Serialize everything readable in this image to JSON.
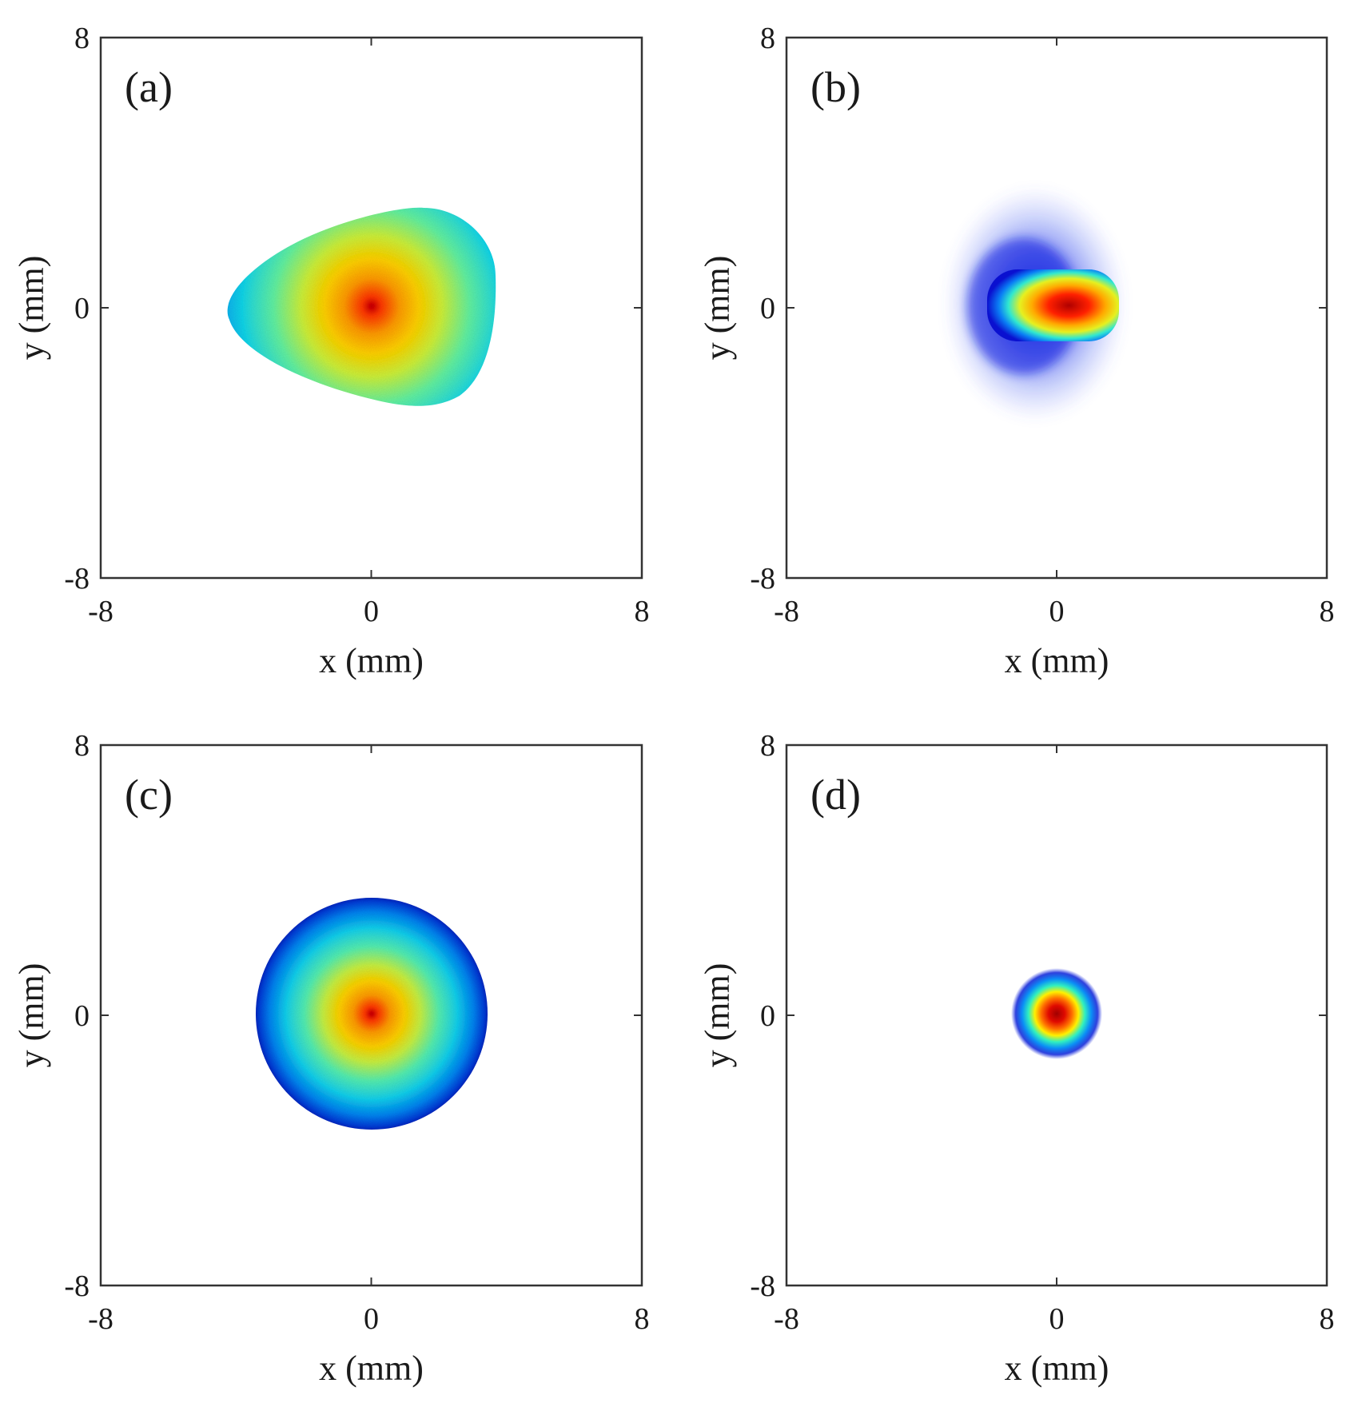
{
  "chart_data": [
    {
      "type": "heatmap",
      "panel_label": "(a)",
      "shape": "rounded-triangle",
      "xlabel": "x (mm)",
      "ylabel": "y (mm)",
      "xlim": [
        -8,
        8
      ],
      "ylim": [
        -8,
        8
      ],
      "xticks": [
        "-8",
        "0",
        "8"
      ],
      "yticks": [
        "-8",
        "0",
        "8"
      ],
      "grid": false,
      "colormap": "jet",
      "peak": [
        0,
        0
      ],
      "extent_x": [
        -4.3,
        3.6
      ],
      "extent_y": [
        -2.9,
        3.0
      ]
    },
    {
      "type": "heatmap",
      "panel_label": "(b)",
      "shape": "offset-core-with-halo",
      "xlabel": "x (mm)",
      "ylabel": "y (mm)",
      "xlim": [
        -8,
        8
      ],
      "ylim": [
        -8,
        8
      ],
      "xticks": [
        "-8",
        "0",
        "8"
      ],
      "yticks": [
        "-8",
        "0",
        "8"
      ],
      "grid": false,
      "colormap": "jet",
      "peak": [
        0.3,
        0
      ],
      "extent_x": [
        -2.2,
        1.8
      ],
      "extent_y": [
        -3.0,
        3.2
      ]
    },
    {
      "type": "heatmap",
      "panel_label": "(c)",
      "shape": "disk",
      "xlabel": "x (mm)",
      "ylabel": "y (mm)",
      "xlim": [
        -8,
        8
      ],
      "ylim": [
        -8,
        8
      ],
      "xticks": [
        "-8",
        "0",
        "8"
      ],
      "yticks": [
        "-8",
        "0",
        "8"
      ],
      "grid": false,
      "colormap": "jet",
      "peak": [
        0,
        0
      ],
      "extent_x": [
        -3.4,
        3.4
      ],
      "extent_y": [
        -3.4,
        3.4
      ]
    },
    {
      "type": "heatmap",
      "panel_label": "(d)",
      "shape": "gaussian-spot",
      "xlabel": "x (mm)",
      "ylabel": "y (mm)",
      "xlim": [
        -8,
        8
      ],
      "ylim": [
        -8,
        8
      ],
      "xticks": [
        "-8",
        "0",
        "8"
      ],
      "yticks": [
        "-8",
        "0",
        "8"
      ],
      "grid": false,
      "colormap": "jet",
      "peak": [
        0,
        0
      ],
      "extent_x": [
        -1.3,
        1.3
      ],
      "extent_y": [
        -1.3,
        1.3
      ]
    }
  ],
  "colors": {
    "frame": "#333333",
    "text": "#1a1a1a",
    "background": "#ffffff"
  }
}
